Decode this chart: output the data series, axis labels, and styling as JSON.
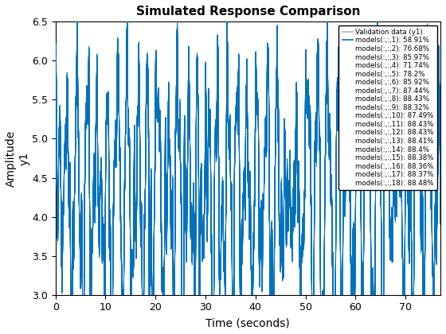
{
  "title": "Simulated Response Comparison",
  "xlabel": "Time (seconds)",
  "ylabel": "Amplitude\ny1",
  "xlim": [
    0,
    77
  ],
  "ylim": [
    3,
    6.5
  ],
  "xticks": [
    0,
    10,
    20,
    30,
    40,
    50,
    60,
    70
  ],
  "yticks": [
    3.0,
    3.5,
    4.0,
    4.5,
    5.0,
    5.5,
    6.0,
    6.5
  ],
  "validation_color": "#b0b0b0",
  "model_color": "#0072bd",
  "legend_entries": [
    "Validation data (y1)",
    "models(:,:,1): 58.91%",
    "models(:,:,2): 76.68%",
    "models(:,:,3): 85.97%",
    "models(:,:,4): 71.74%",
    "models(:,:,5): 78.2%",
    "models(:,:,6): 85.92%",
    "models(:,:,7): 87.44%",
    "models(:,:,8): 88.43%",
    "models(:,:,9): 88.32%",
    "models(:,:,10): 87.49%",
    "models(:,:,11): 88.43%",
    "models(:,:,12): 88.43%",
    "models(:,:,13): 88.41%",
    "models(:,:,14): 88.4%",
    "models(:,:,15): 88.38%",
    "models(:,:,16): 88.36%",
    "models(:,:,17): 88.37%",
    "models(:,:,18): 88.48%"
  ],
  "figsize": [
    5.6,
    4.2
  ],
  "dpi": 100
}
